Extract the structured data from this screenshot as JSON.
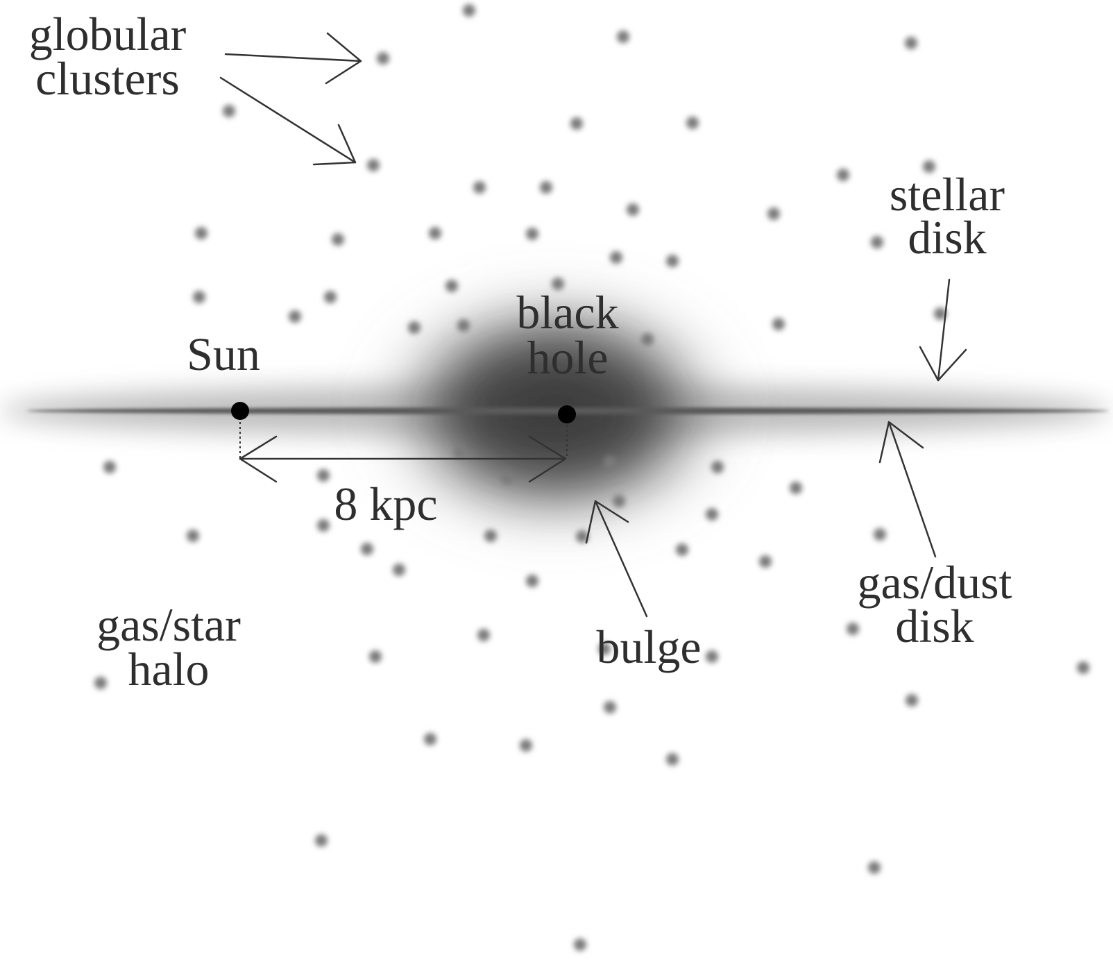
{
  "labels": {
    "globular_line1": "globular",
    "globular_line2": "clusters",
    "stellar_line1": "stellar",
    "stellar_line2": "disk",
    "black_line1": "black",
    "black_line2": "hole",
    "sun": "Sun",
    "distance": "8 kpc",
    "halo_line1": "gas/star",
    "halo_line2": "halo",
    "bulge": "bulge",
    "gasdust_line1": "gas/dust",
    "gasdust_line2": "disk"
  },
  "colors": {
    "background": "#ffffff",
    "text": "#2e2e2e",
    "cluster": "#7a7a7a",
    "disk": "#5a5a5a",
    "bulge": "#3f3f3f",
    "marker": "#000000",
    "arrow": "#333333"
  },
  "icons": {
    "globular_cluster": "blurred-dot",
    "sun_marker": "black-dot",
    "black_hole_marker": "black-dot"
  }
}
